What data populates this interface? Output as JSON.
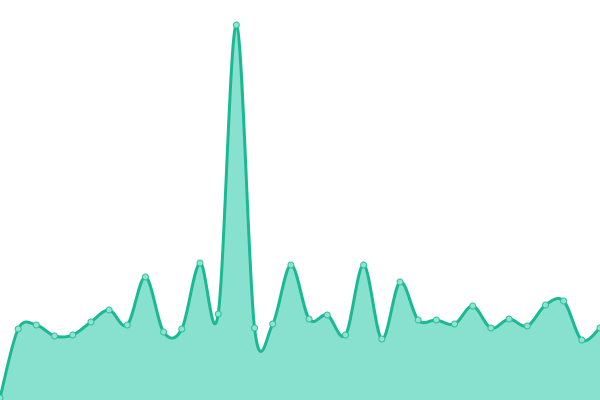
{
  "chart_data": {
    "type": "area",
    "title": "",
    "xlabel": "",
    "ylabel": "",
    "x": [
      0,
      1,
      2,
      3,
      4,
      5,
      6,
      7,
      8,
      9,
      10,
      11,
      12,
      13,
      14,
      15,
      16,
      17,
      18,
      19,
      20,
      21,
      22,
      23,
      24,
      25,
      26,
      27,
      28,
      29,
      30,
      31,
      32,
      33
    ],
    "values": [
      2,
      71,
      75,
      64,
      65,
      78,
      90,
      75,
      123,
      68,
      71,
      137,
      86,
      375,
      72,
      76,
      135,
      81,
      85,
      65,
      135,
      61,
      118,
      80,
      80,
      76,
      94,
      72,
      81,
      74,
      95,
      99,
      60,
      72
    ],
    "ylim": [
      0,
      400
    ],
    "grid": false,
    "axes_visible": false,
    "legend": "none",
    "smooth": true,
    "colors": {
      "line": "#1bb993",
      "fill": "#88e0cf",
      "point_fill": "#8fe3d1",
      "point_stroke": "#2ebf9c"
    }
  }
}
